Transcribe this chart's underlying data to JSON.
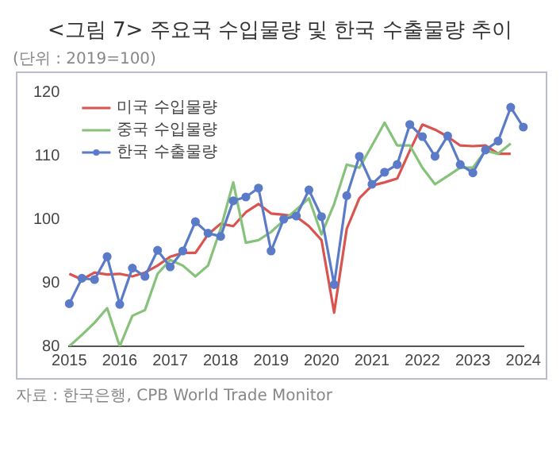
{
  "chart_data": {
    "type": "line",
    "title": "<그림 7> 주요국 수입물량 및 한국 수출물량 추이",
    "subtitle": "(단위 : 2019=100)",
    "annotations": [
      "자료 : 한국은행, CPB World Trade Monitor"
    ],
    "categories": [
      "2015",
      null,
      null,
      null,
      "2016",
      null,
      null,
      null,
      "2017",
      null,
      null,
      null,
      "2018",
      null,
      null,
      null,
      "2019",
      null,
      null,
      null,
      "2020",
      null,
      null,
      null,
      "2021",
      null,
      null,
      null,
      "2022",
      null,
      null,
      null,
      "2023",
      null,
      null,
      null,
      "2024"
    ],
    "ylim": [
      80,
      120
    ],
    "yticks": [
      80,
      90,
      100,
      110,
      120
    ],
    "grid": false,
    "legend": "top left",
    "line_style": "solid",
    "series": [
      {
        "name": "미국 수입물량",
        "color": "#d9534f",
        "marker": "none",
        "values": [
          91.4,
          90.5,
          91.6,
          91.3,
          91.4,
          91.0,
          91.6,
          92.7,
          94.1,
          94.7,
          94.7,
          97.6,
          99.3,
          98.9,
          101.1,
          102.4,
          100.9,
          100.7,
          100.4,
          98.9,
          96.7,
          85.3,
          98.5,
          103.3,
          105.3,
          105.8,
          106.4,
          110.8,
          114.9,
          114.1,
          113.0,
          111.6,
          111.5,
          111.6,
          110.3,
          110.3,
          null
        ]
      },
      {
        "name": "중국 수입물량",
        "color": "#86c27a",
        "marker": "none",
        "values": [
          80.0,
          81.8,
          83.7,
          86.0,
          80.0,
          84.8,
          85.7,
          91.4,
          93.6,
          92.7,
          91.0,
          92.7,
          98.5,
          105.8,
          96.3,
          96.7,
          98.0,
          99.8,
          101.5,
          103.3,
          97.6,
          102.4,
          108.6,
          108.1,
          111.6,
          115.2,
          111.6,
          111.6,
          108.1,
          105.5,
          106.8,
          108.1,
          108.1,
          110.8,
          110.3,
          111.9,
          null
        ]
      },
      {
        "name": "한국 수출물량",
        "color": "#5b7bc8",
        "marker": "circle",
        "values": [
          86.7,
          90.7,
          90.5,
          94.1,
          86.6,
          92.3,
          91.0,
          95.1,
          92.5,
          95.0,
          99.6,
          97.8,
          97.3,
          102.9,
          103.5,
          104.9,
          95.0,
          100.0,
          100.5,
          104.6,
          100.4,
          89.7,
          103.7,
          109.9,
          105.5,
          107.4,
          108.6,
          114.9,
          113.0,
          109.9,
          113.1,
          108.6,
          107.3,
          110.9,
          112.3,
          117.6,
          114.5
        ]
      }
    ]
  }
}
